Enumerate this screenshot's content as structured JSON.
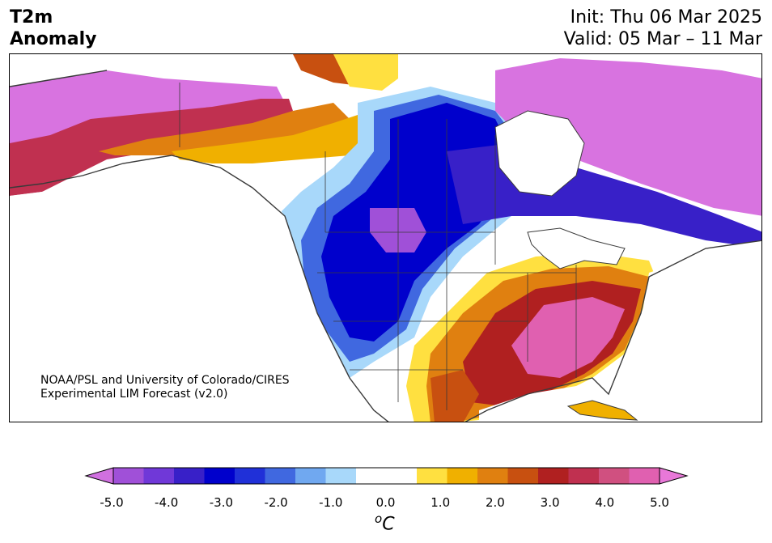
{
  "header": {
    "title_line1": "T2m",
    "title_line2": "Anomaly",
    "init": "Init: Thu 06 Mar 2025",
    "valid": "Valid: 05 Mar – 11 Mar"
  },
  "credit": {
    "line1": "NOAA/PSL and University of Colorado/CIRES",
    "line2": "Experimental LIM Forecast (v2.0)"
  },
  "colorbar": {
    "min": -5.0,
    "max": 5.0,
    "step": 0.5,
    "tick_labels": [
      "-5.0",
      "-4.0",
      "-3.0",
      "-2.0",
      "-1.0",
      "0.0",
      "1.0",
      "2.0",
      "3.0",
      "4.0",
      "5.0"
    ],
    "units_base": "C",
    "units_sup": "o",
    "colors": [
      "#d070e0",
      "#a050d8",
      "#7038d8",
      "#3820c8",
      "#0000cc",
      "#2030d8",
      "#4068e0",
      "#70a8f0",
      "#a8d8fa",
      "#ffffff",
      "#ffffff",
      "#ffe040",
      "#f0b000",
      "#e08010",
      "#c85010",
      "#b02020",
      "#c03050",
      "#d05080",
      "#e060b0",
      "#e878d8"
    ]
  },
  "colors": {
    "land_outline": "#3a3a3a",
    "water": "#ffffff"
  }
}
